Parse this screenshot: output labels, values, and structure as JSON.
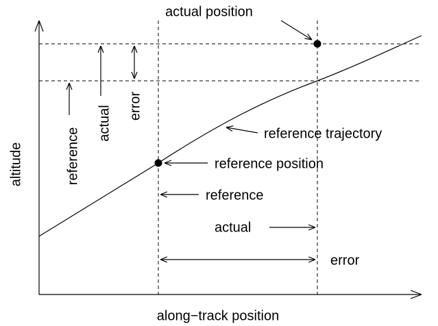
{
  "axes": {
    "y_label": "altitude",
    "x_label": "along−track position"
  },
  "labels": {
    "actual_position": "actual position",
    "reference_trajectory": "reference trajectory",
    "reference_position": "reference position",
    "along_track": {
      "reference": "reference",
      "actual": "actual",
      "error": "error"
    },
    "altitude": {
      "reference": "reference",
      "actual": "actual",
      "error": "error"
    }
  }
}
